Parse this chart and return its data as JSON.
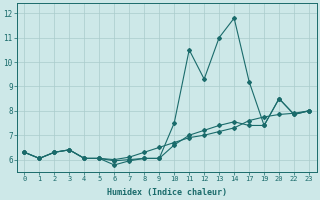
{
  "xlabel": "Humidex (Indice chaleur)",
  "bg_color": "#cde8e8",
  "grid_color": "#aacccc",
  "line_color": "#1a6b6b",
  "ylim": [
    5.5,
    12.4
  ],
  "xlim": [
    -0.5,
    23.5
  ],
  "yticks": [
    6,
    7,
    8,
    9,
    10,
    11,
    12
  ],
  "xtick_positions": [
    0,
    1,
    2,
    3,
    4,
    5,
    6,
    7,
    8,
    9,
    10,
    11,
    12,
    13,
    14,
    17,
    19,
    20,
    22,
    23
  ],
  "xtick_labels": [
    "0",
    "1",
    "2",
    "3",
    "4",
    "5",
    "6",
    "7",
    "8",
    "9",
    "10",
    "11",
    "12",
    "13",
    "14",
    "17",
    "19",
    "20",
    "22",
    "23"
  ],
  "line1_x": [
    0,
    1,
    2,
    3,
    4,
    5,
    6,
    7,
    8,
    9,
    10,
    11,
    12,
    13,
    14,
    17,
    19,
    20,
    22,
    23
  ],
  "line1_y": [
    6.3,
    6.05,
    6.3,
    6.4,
    6.05,
    6.05,
    5.95,
    6.0,
    6.05,
    6.05,
    7.5,
    10.5,
    9.3,
    11.0,
    11.8,
    9.2,
    7.4,
    8.5,
    7.85,
    8.0
  ],
  "line2_x": [
    0,
    1,
    2,
    3,
    4,
    5,
    6,
    7,
    8,
    9,
    10,
    11,
    12,
    13,
    14,
    17,
    19,
    20,
    22,
    23
  ],
  "line2_y": [
    6.3,
    6.05,
    6.3,
    6.4,
    6.05,
    6.05,
    6.0,
    6.1,
    6.3,
    6.5,
    6.7,
    6.9,
    7.0,
    7.15,
    7.3,
    7.6,
    7.75,
    7.85,
    7.9,
    8.0
  ],
  "line3_x": [
    0,
    1,
    2,
    3,
    4,
    5,
    6,
    7,
    8,
    9,
    10,
    11,
    12,
    13,
    14,
    17,
    19,
    20,
    22,
    23
  ],
  "line3_y": [
    6.3,
    6.05,
    6.3,
    6.4,
    6.05,
    6.05,
    5.78,
    5.95,
    6.05,
    6.05,
    6.6,
    7.0,
    7.2,
    7.4,
    7.55,
    7.4,
    7.4,
    8.5,
    7.85,
    8.0
  ]
}
